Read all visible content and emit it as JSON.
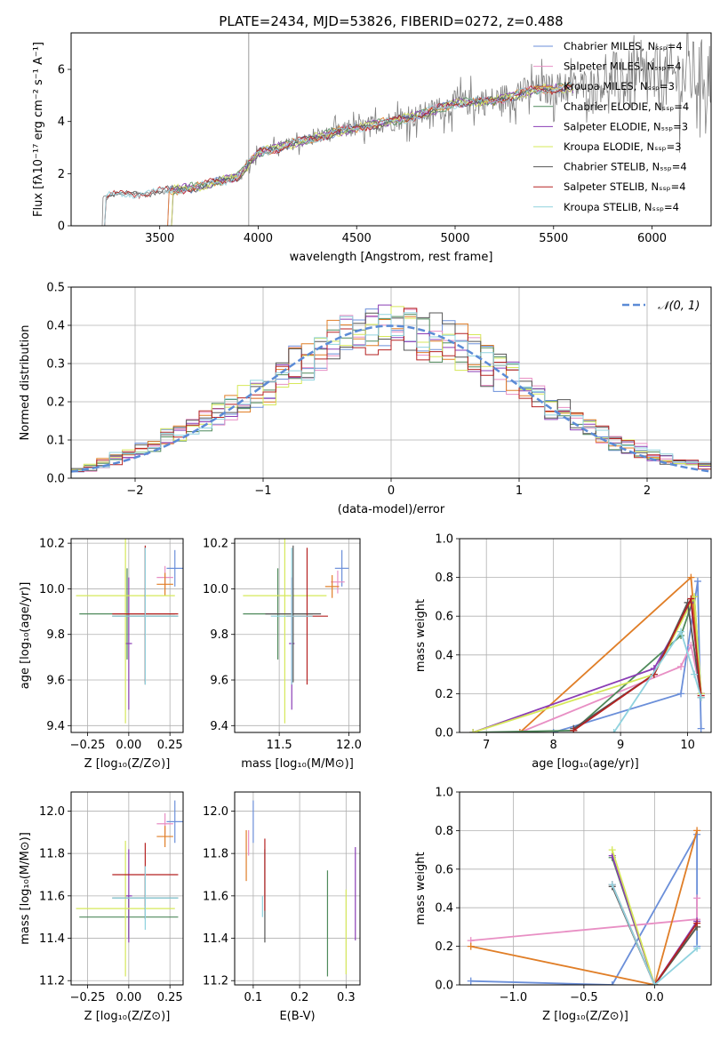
{
  "figure": {
    "title": "PLATE=2434, MJD=53826, FIBERID=0272, z=0.488",
    "colors": {
      "Chabrier MILES": "#6b8fd9",
      "Salpeter MILES": "#e88fc4",
      "Kroupa MILES": "#e07e27",
      "Chabrier ELODIE": "#4f8a5b",
      "Salpeter ELODIE": "#8b3db5",
      "Kroupa ELODIE": "#d6e85a",
      "Chabrier STELIB": "#555555",
      "Salpeter STELIB": "#b52222",
      "Kroupa STELIB": "#8fd2de",
      "data": "#808080",
      "gaussian": "#5b8bd6",
      "grid": "#b0b0b0"
    }
  },
  "chart_data": [
    {
      "id": "spectrum",
      "type": "line",
      "xlabel": "wavelength [Angstrom, rest frame]",
      "ylabel": "Flux [fλ10⁻¹⁷ erg cm⁻² s⁻¹ A⁻¹]",
      "xlim": [
        3050,
        6300
      ],
      "ylim": [
        0,
        7.4
      ],
      "xticks": [
        "3500",
        "4000",
        "4500",
        "5000",
        "5500",
        "6000"
      ],
      "yticks": [
        "0",
        "2",
        "4",
        "6"
      ],
      "grid": false,
      "legend_position": "top-right",
      "legend": [
        "Chabrier MILES, Nₛₛₚ=4",
        "Salpeter MILES, Nₛₛₚ=4",
        "Kroupa MILES, Nₛₛₚ=3",
        "Chabrier ELODIE, Nₛₛₚ=4",
        "Salpeter ELODIE, Nₛₛₚ=3",
        "Kroupa ELODIE, Nₛₛₚ=3",
        "Chabrier STELIB, Nₛₛₚ=4",
        "Salpeter STELIB, Nₛₛₚ=4",
        "Kroupa STELIB, Nₛₛₚ=4"
      ],
      "continuum": {
        "x": [
          3200,
          3300,
          3500,
          3700,
          3900,
          4000,
          4200,
          4400,
          4600,
          4800,
          5000,
          5200,
          5400,
          5600,
          5800,
          6000,
          6200
        ],
        "y": [
          1.1,
          1.2,
          1.3,
          1.5,
          1.9,
          2.8,
          3.2,
          3.6,
          3.9,
          4.2,
          4.7,
          4.8,
          5.2,
          5.3,
          5.5,
          5.6,
          5.8
        ]
      }
    },
    {
      "id": "residuals",
      "type": "line",
      "xlabel": "(data-model)/error",
      "ylabel": "Normed distribution",
      "xlim": [
        -2.5,
        2.5
      ],
      "ylim": [
        0,
        0.5
      ],
      "xticks": [
        "−2",
        "−1",
        "0",
        "1",
        "2"
      ],
      "yticks": [
        "0.0",
        "0.1",
        "0.2",
        "0.3",
        "0.4",
        "0.5"
      ],
      "grid": true,
      "legend_position": "top-right",
      "legend": [
        "𝒩(0, 1)"
      ],
      "bins": 50,
      "envelope": [
        0.022,
        0.03,
        0.04,
        0.05,
        0.062,
        0.075,
        0.085,
        0.11,
        0.12,
        0.135,
        0.15,
        0.17,
        0.185,
        0.205,
        0.22,
        0.24,
        0.27,
        0.3,
        0.32,
        0.34,
        0.36,
        0.375,
        0.38,
        0.385,
        0.39,
        0.395,
        0.39,
        0.38,
        0.375,
        0.36,
        0.34,
        0.32,
        0.3,
        0.28,
        0.26,
        0.235,
        0.21,
        0.19,
        0.17,
        0.15,
        0.13,
        0.11,
        0.095,
        0.08,
        0.07,
        0.06,
        0.05,
        0.045,
        0.04,
        0.035
      ]
    },
    {
      "id": "age-vs-Z",
      "type": "scatter",
      "xlabel": "Z [log₁₀(Z/Z⊙)]",
      "ylabel": "age  [log₁₀(age/yr)]",
      "xlim": [
        -0.35,
        0.33
      ],
      "ylim": [
        9.37,
        10.22
      ],
      "xticks": [
        "−0.25",
        "0.00",
        "0.25"
      ],
      "yticks": [
        "9.4",
        "9.6",
        "9.8",
        "10.0",
        "10.2"
      ],
      "grid": true,
      "points": [
        {
          "model": "Chabrier MILES",
          "x": 0.28,
          "y": 10.09,
          "xerr": 0.05,
          "yerr": 0.08
        },
        {
          "model": "Salpeter MILES",
          "x": 0.22,
          "y": 10.05,
          "xerr": 0.05,
          "yerr": 0.05
        },
        {
          "model": "Kroupa MILES",
          "x": 0.22,
          "y": 10.02,
          "xerr": 0.05,
          "yerr": 0.05
        },
        {
          "model": "Chabrier ELODIE",
          "x": -0.01,
          "y": 9.89,
          "xerr": 0.29,
          "yerr": 0.2
        },
        {
          "model": "Salpeter ELODIE",
          "x": 0.0,
          "y": 9.76,
          "xerr": 0.02,
          "yerr": 0.29
        },
        {
          "model": "Kroupa ELODIE",
          "x": -0.02,
          "y": 9.97,
          "xerr": 0.3,
          "yerr": 0.56
        },
        {
          "model": "Chabrier STELIB",
          "x": 0.1,
          "y": 9.88,
          "xerr": 0.2,
          "yerr": 0.3
        },
        {
          "model": "Salpeter STELIB",
          "x": 0.1,
          "y": 9.89,
          "xerr": 0.2,
          "yerr": 0.3
        },
        {
          "model": "Kroupa STELIB",
          "x": 0.1,
          "y": 9.88,
          "xerr": 0.2,
          "yerr": 0.3
        }
      ]
    },
    {
      "id": "age-vs-mass",
      "type": "scatter",
      "xlabel": "mass [log₁₀(M/M⊙)]",
      "ylabel": "",
      "xlim": [
        11.18,
        12.08
      ],
      "ylim": [
        9.37,
        10.22
      ],
      "xticks": [
        "11.5",
        "12.0"
      ],
      "yticks": [
        "9.4",
        "9.6",
        "9.8",
        "10.0",
        "10.2"
      ],
      "grid": true,
      "points": [
        {
          "model": "Chabrier MILES",
          "x": 11.95,
          "y": 10.09,
          "xerr": 0.05,
          "yerr": 0.08
        },
        {
          "model": "Salpeter MILES",
          "x": 11.92,
          "y": 10.03,
          "xerr": 0.05,
          "yerr": 0.05
        },
        {
          "model": "Kroupa MILES",
          "x": 11.88,
          "y": 10.01,
          "xerr": 0.05,
          "yerr": 0.05
        },
        {
          "model": "Chabrier ELODIE",
          "x": 11.49,
          "y": 9.89,
          "xerr": 0.25,
          "yerr": 0.2
        },
        {
          "model": "Salpeter ELODIE",
          "x": 11.59,
          "y": 9.76,
          "xerr": 0.02,
          "yerr": 0.29
        },
        {
          "model": "Kroupa ELODIE",
          "x": 11.54,
          "y": 9.97,
          "xerr": 0.3,
          "yerr": 0.56
        },
        {
          "model": "Chabrier STELIB",
          "x": 11.6,
          "y": 9.89,
          "xerr": 0.2,
          "yerr": 0.3
        },
        {
          "model": "Salpeter STELIB",
          "x": 11.7,
          "y": 9.88,
          "xerr": 0.15,
          "yerr": 0.3
        },
        {
          "model": "Kroupa STELIB",
          "x": 11.59,
          "y": 9.88,
          "xerr": 0.15,
          "yerr": 0.3
        }
      ]
    },
    {
      "id": "weight-vs-age",
      "type": "line",
      "xlabel": "age  [log₁₀(age/yr)]",
      "ylabel": "mass weight",
      "xlim": [
        6.6,
        10.35
      ],
      "ylim": [
        0,
        1.0
      ],
      "xticks": [
        "7",
        "8",
        "9",
        "10"
      ],
      "yticks": [
        "0.0",
        "0.2",
        "0.4",
        "0.6",
        "0.8",
        "1.0"
      ],
      "grid": true,
      "series": [
        {
          "model": "Chabrier MILES",
          "x": [
            8.0,
            9.9,
            10.15,
            10.2
          ],
          "y": [
            0.0,
            0.2,
            0.78,
            0.02
          ]
        },
        {
          "model": "Salpeter MILES",
          "x": [
            7.5,
            9.9,
            10.05,
            10.2
          ],
          "y": [
            0.0,
            0.34,
            0.45,
            0.2
          ]
        },
        {
          "model": "Kroupa MILES",
          "x": [
            7.5,
            10.05,
            10.2
          ],
          "y": [
            0.0,
            0.8,
            0.2
          ]
        },
        {
          "model": "Chabrier ELODIE",
          "x": [
            6.8,
            8.3,
            9.9,
            10.1,
            10.2
          ],
          "y": [
            0.0,
            0.01,
            0.5,
            0.7,
            0.2
          ]
        },
        {
          "model": "Salpeter ELODIE",
          "x": [
            6.8,
            9.5,
            10.05,
            10.2
          ],
          "y": [
            0.0,
            0.33,
            0.67,
            0.2
          ]
        },
        {
          "model": "Kroupa ELODIE",
          "x": [
            6.8,
            9.5,
            10.1,
            10.2
          ],
          "y": [
            0.0,
            0.3,
            0.7,
            0.2
          ]
        },
        {
          "model": "Chabrier STELIB",
          "x": [
            8.3,
            9.5,
            10.0,
            10.2
          ],
          "y": [
            0.02,
            0.3,
            0.67,
            0.18
          ]
        },
        {
          "model": "Salpeter STELIB",
          "x": [
            8.3,
            9.5,
            10.05,
            10.2
          ],
          "y": [
            0.01,
            0.3,
            0.69,
            0.19
          ]
        },
        {
          "model": "Kroupa STELIB",
          "x": [
            8.9,
            9.9,
            10.1,
            10.2
          ],
          "y": [
            0.0,
            0.52,
            0.3,
            0.18
          ]
        }
      ]
    },
    {
      "id": "mass-vs-Z",
      "type": "scatter",
      "xlabel": "Z [log₁₀(Z/Z⊙)]",
      "ylabel": "mass [log₁₀(M/M⊙)]",
      "xlim": [
        -0.35,
        0.33
      ],
      "ylim": [
        11.18,
        12.09
      ],
      "xticks": [
        "−0.25",
        "0.00",
        "0.25"
      ],
      "yticks": [
        "11.2",
        "11.4",
        "11.6",
        "11.8",
        "12.0"
      ],
      "grid": true,
      "points": [
        {
          "model": "Chabrier MILES",
          "x": 0.28,
          "y": 11.95,
          "xerr": 0.05,
          "yerr": 0.1
        },
        {
          "model": "Salpeter MILES",
          "x": 0.22,
          "y": 11.94,
          "xerr": 0.05,
          "yerr": 0.05
        },
        {
          "model": "Kroupa MILES",
          "x": 0.22,
          "y": 11.88,
          "xerr": 0.05,
          "yerr": 0.05
        },
        {
          "model": "Chabrier ELODIE",
          "x": 0.0,
          "y": 11.5,
          "xerr": 0.3,
          "yerr": 0.1
        },
        {
          "model": "Salpeter ELODIE",
          "x": 0.0,
          "y": 11.6,
          "xerr": 0.02,
          "yerr": 0.22
        },
        {
          "model": "Kroupa ELODIE",
          "x": -0.02,
          "y": 11.54,
          "xerr": 0.3,
          "yerr": 0.32
        },
        {
          "model": "Chabrier STELIB",
          "x": 0.1,
          "y": 11.59,
          "xerr": 0.2,
          "yerr": 0.1
        },
        {
          "model": "Salpeter STELIB",
          "x": 0.1,
          "y": 11.7,
          "xerr": 0.2,
          "yerr": 0.15
        },
        {
          "model": "Kroupa STELIB",
          "x": 0.1,
          "y": 11.59,
          "xerr": 0.2,
          "yerr": 0.15
        }
      ]
    },
    {
      "id": "mass-vs-EBV",
      "type": "scatter",
      "xlabel": "E(B-V)",
      "ylabel": "",
      "xlim": [
        0.06,
        0.33
      ],
      "ylim": [
        11.18,
        12.09
      ],
      "xticks": [
        "0.1",
        "0.2",
        "0.3"
      ],
      "yticks": [
        "11.2",
        "11.4",
        "11.6",
        "11.8",
        "12.0"
      ],
      "grid": true,
      "points": [
        {
          "model": "Chabrier MILES",
          "x": 0.1,
          "y": 11.95,
          "xerr": 0,
          "yerr": 0.1
        },
        {
          "model": "Salpeter MILES",
          "x": 0.09,
          "y": 11.85,
          "xerr": 0,
          "yerr": 0.06
        },
        {
          "model": "Kroupa MILES",
          "x": 0.085,
          "y": 11.79,
          "xerr": 0,
          "yerr": 0.12
        },
        {
          "model": "Chabrier ELODIE",
          "x": 0.26,
          "y": 11.47,
          "xerr": 0,
          "yerr": 0.25
        },
        {
          "model": "Salpeter ELODIE",
          "x": 0.32,
          "y": 11.61,
          "xerr": 0,
          "yerr": 0.22
        },
        {
          "model": "Kroupa ELODIE",
          "x": 0.3,
          "y": 11.43,
          "xerr": 0,
          "yerr": 0.2
        },
        {
          "model": "Chabrier STELIB",
          "x": 0.125,
          "y": 11.6,
          "xerr": 0,
          "yerr": 0.22
        },
        {
          "model": "Salpeter STELIB",
          "x": 0.125,
          "y": 11.7,
          "xerr": 0,
          "yerr": 0.17
        },
        {
          "model": "Kroupa STELIB",
          "x": 0.12,
          "y": 11.55,
          "xerr": 0,
          "yerr": 0.05
        }
      ]
    },
    {
      "id": "weight-vs-Z",
      "type": "line",
      "xlabel": "Z [log₁₀(Z/Z⊙)]",
      "ylabel": "mass weight",
      "xlim": [
        -1.38,
        0.4
      ],
      "ylim": [
        0,
        1.0
      ],
      "xticks": [
        "−1.0",
        "−0.5",
        "0.0"
      ],
      "yticks": [
        "0.0",
        "0.2",
        "0.4",
        "0.6",
        "0.8",
        "1.0"
      ],
      "grid": true,
      "series": [
        {
          "model": "Chabrier MILES",
          "x": [
            -1.3,
            -0.3,
            0.3,
            0.3
          ],
          "y": [
            0.02,
            0.0,
            0.78,
            0.2
          ]
        },
        {
          "model": "Salpeter MILES",
          "x": [
            -1.3,
            0.3,
            0.3
          ],
          "y": [
            0.23,
            0.34,
            0.45
          ]
        },
        {
          "model": "Kroupa MILES",
          "x": [
            -1.3,
            0.0,
            0.3
          ],
          "y": [
            0.2,
            0.0,
            0.8
          ]
        },
        {
          "model": "Chabrier ELODIE",
          "x": [
            -0.3,
            0.0,
            0.3
          ],
          "y": [
            0.66,
            0.0,
            0.3
          ]
        },
        {
          "model": "Salpeter ELODIE",
          "x": [
            -0.3,
            0.0,
            0.3
          ],
          "y": [
            0.67,
            0.0,
            0.33
          ]
        },
        {
          "model": "Kroupa ELODIE",
          "x": [
            -0.3,
            0.0,
            0.3
          ],
          "y": [
            0.7,
            0.0,
            0.3
          ]
        },
        {
          "model": "Chabrier STELIB",
          "x": [
            -0.3,
            0.0,
            0.3
          ],
          "y": [
            0.51,
            0.0,
            0.3
          ]
        },
        {
          "model": "Salpeter STELIB",
          "x": [
            -0.3,
            0.0,
            0.3
          ],
          "y": [
            0.52,
            0.0,
            0.32
          ]
        },
        {
          "model": "Kroupa STELIB",
          "x": [
            -0.3,
            0.0,
            0.3
          ],
          "y": [
            0.52,
            0.0,
            0.19
          ]
        }
      ]
    }
  ]
}
